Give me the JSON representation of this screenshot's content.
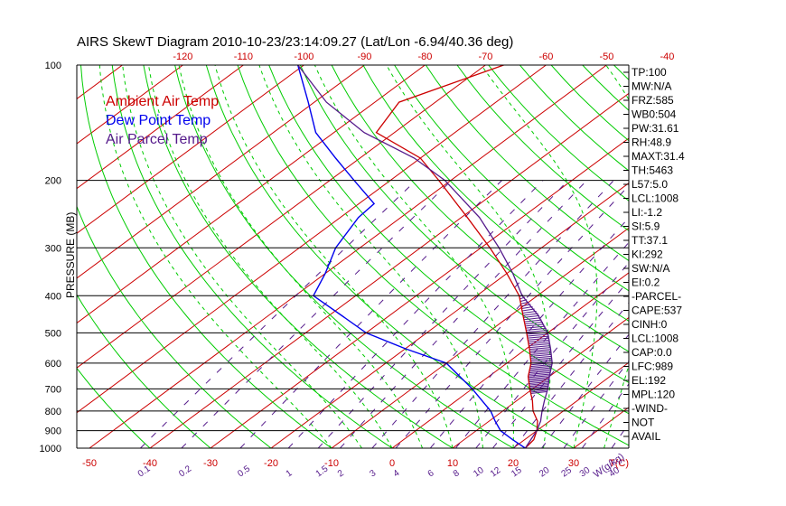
{
  "colors": {
    "ambient": "#cc0000",
    "dew": "#0000ee",
    "parcel": "#551a8b",
    "dry_adiabat": "#00cc00",
    "moist_adiabat": "#00cc00",
    "mixing": "#551a8b",
    "isotherm": "#cc0000",
    "isobar": "#000000",
    "hatch": "#551a8b"
  },
  "chart_data": {
    "type": "line",
    "title": "AIRS SkewT Diagram 2010-10-23/23:14:09.27 (Lat/Lon -6.94/40.36 deg)",
    "ylabel": "PRESSURE (MB)",
    "xlabel_units": "T(C)",
    "mixing_units": "W(g/kg)",
    "y_scale": "log",
    "ylim": [
      1000,
      100
    ],
    "xlim": [
      -50,
      30
    ],
    "grid": true,
    "legend": [
      {
        "name": "Ambient Air Temp",
        "key": "ambient"
      },
      {
        "name": "Dew Point Temp",
        "key": "dew"
      },
      {
        "name": "Air Parcel Temp",
        "key": "parcel"
      }
    ],
    "pressure_ticks": [
      100,
      200,
      300,
      400,
      500,
      600,
      700,
      800,
      900,
      1000
    ],
    "bottom_temp_ticks": [
      -50,
      -40,
      -30,
      -20,
      -10,
      0,
      10,
      20,
      30
    ],
    "top_temp_ticks": [
      -120,
      -110,
      -100,
      -90,
      -80,
      -70,
      -60,
      -50,
      -40
    ],
    "mixing_ratio_labels": [
      "0.1",
      "0.2",
      "0.5",
      "1",
      "1.5",
      "2",
      "3",
      "4",
      "6",
      "8",
      "10",
      "12",
      "15",
      "20",
      "25",
      "30",
      "40"
    ],
    "series": [
      {
        "name": "Ambient Air Temp",
        "key": "ambient",
        "points": [
          {
            "p": 1000,
            "t": 22.0
          },
          {
            "p": 950,
            "t": 21.5
          },
          {
            "p": 900,
            "t": 20.0
          },
          {
            "p": 850,
            "t": 18.0
          },
          {
            "p": 800,
            "t": 15.0
          },
          {
            "p": 750,
            "t": 12.5
          },
          {
            "p": 700,
            "t": 9.5
          },
          {
            "p": 650,
            "t": 6.5
          },
          {
            "p": 600,
            "t": 4.0
          },
          {
            "p": 550,
            "t": 0.5
          },
          {
            "p": 500,
            "t": -3.5
          },
          {
            "p": 450,
            "t": -8.0
          },
          {
            "p": 400,
            "t": -13.0
          },
          {
            "p": 350,
            "t": -20.0
          },
          {
            "p": 300,
            "t": -28.5
          },
          {
            "p": 250,
            "t": -39.0
          },
          {
            "p": 200,
            "t": -52.0
          },
          {
            "p": 175,
            "t": -60.0
          },
          {
            "p": 150,
            "t": -73.0
          },
          {
            "p": 125,
            "t": -76.0
          },
          {
            "p": 100,
            "t": -67.0
          }
        ]
      },
      {
        "name": "Dew Point Temp",
        "key": "dew",
        "points": [
          {
            "p": 1000,
            "t": 22.0
          },
          {
            "p": 950,
            "t": 18.0
          },
          {
            "p": 900,
            "t": 14.0
          },
          {
            "p": 850,
            "t": 11.0
          },
          {
            "p": 800,
            "t": 8.0
          },
          {
            "p": 700,
            "t": 0.0
          },
          {
            "p": 600,
            "t": -10.0
          },
          {
            "p": 550,
            "t": -20.0
          },
          {
            "p": 500,
            "t": -30.0
          },
          {
            "p": 450,
            "t": -38.0
          },
          {
            "p": 400,
            "t": -47.0
          },
          {
            "p": 350,
            "t": -50.0
          },
          {
            "p": 300,
            "t": -54.0
          },
          {
            "p": 250,
            "t": -57.0
          },
          {
            "p": 230,
            "t": -57.5
          },
          {
            "p": 200,
            "t": -66.0
          },
          {
            "p": 175,
            "t": -74.0
          },
          {
            "p": 150,
            "t": -83.0
          },
          {
            "p": 125,
            "t": -91.0
          },
          {
            "p": 100,
            "t": -101.0
          }
        ]
      },
      {
        "name": "Air Parcel Temp",
        "key": "parcel",
        "points": [
          {
            "p": 1000,
            "t": 22.0
          },
          {
            "p": 950,
            "t": 21.0
          },
          {
            "p": 900,
            "t": 20.0
          },
          {
            "p": 850,
            "t": 18.5
          },
          {
            "p": 800,
            "t": 16.5
          },
          {
            "p": 750,
            "t": 14.5
          },
          {
            "p": 700,
            "t": 12.5
          },
          {
            "p": 650,
            "t": 10.0
          },
          {
            "p": 600,
            "t": 7.5
          },
          {
            "p": 550,
            "t": 4.0
          },
          {
            "p": 500,
            "t": 0.0
          },
          {
            "p": 450,
            "t": -5.5
          },
          {
            "p": 400,
            "t": -12.5
          },
          {
            "p": 350,
            "t": -19.0
          },
          {
            "p": 300,
            "t": -27.0
          },
          {
            "p": 250,
            "t": -37.0
          },
          {
            "p": 200,
            "t": -51.0
          },
          {
            "p": 175,
            "t": -61.0
          },
          {
            "p": 150,
            "t": -75.0
          },
          {
            "p": 125,
            "t": -88.0
          },
          {
            "p": 100,
            "t": -101.0
          }
        ]
      }
    ],
    "cape_hatch_range": [
      720,
      400
    ]
  },
  "indices": [
    "TP:100",
    "MW:N/A",
    "FRZ:585",
    "WB0:504",
    "PW:31.61",
    "RH:48.9",
    "MAXT:31.4",
    "TH:5463",
    "L57:5.0",
    "LCL:1008",
    "LI:-1.2",
    "SI:5.9",
    "TT:37.1",
    "KI:292",
    "SW:N/A",
    "EI:0.2",
    "-PARCEL-",
    "CAPE:537",
    "CINH:0",
    "LCL:1008",
    "CAP:0.0",
    "LFC:989",
    "EL:192",
    "MPL:120",
    "-WIND-",
    "NOT",
    "AVAIL"
  ]
}
